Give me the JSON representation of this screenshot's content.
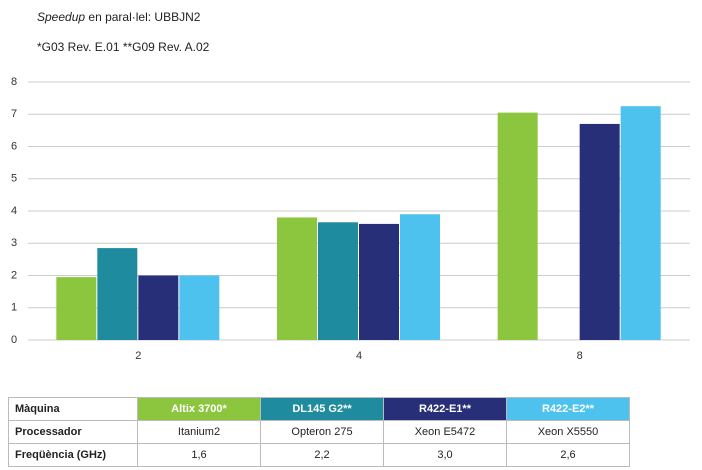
{
  "chart_data": {
    "type": "bar",
    "title": {
      "emphasis": "Speedup",
      "rest": "en paral·lel: UBBJN2"
    },
    "subtitle": "*G03 Rev. E.01  **G09 Rev. A.02",
    "categories": [
      "2",
      "4",
      "8"
    ],
    "series": [
      {
        "name": "Altix 3700*",
        "color": "#8cc63f",
        "values": [
          1.95,
          3.8,
          7.05
        ]
      },
      {
        "name": "DL145 G2**",
        "color": "#1e8c9e",
        "values": [
          2.85,
          3.65,
          null
        ]
      },
      {
        "name": "R422-E1**",
        "color": "#262f78",
        "values": [
          2.0,
          3.6,
          6.7
        ]
      },
      {
        "name": "R422-E2**",
        "color": "#4ec2ee",
        "values": [
          2.0,
          3.9,
          7.25
        ]
      }
    ],
    "ylim": [
      0,
      8
    ],
    "yticks": [
      0,
      1,
      2,
      3,
      4,
      5,
      6,
      7,
      8
    ],
    "grid": true
  },
  "table": {
    "header_label": "Màquina",
    "rows": [
      {
        "label": "Processador",
        "cells": [
          "Itanium2",
          "Opteron 275",
          "Xeon E5472",
          "Xeon X5550"
        ]
      },
      {
        "label": "Freqüència (GHz)",
        "cells": [
          "1,6",
          "2,2",
          "3,0",
          "2,6"
        ]
      }
    ]
  }
}
